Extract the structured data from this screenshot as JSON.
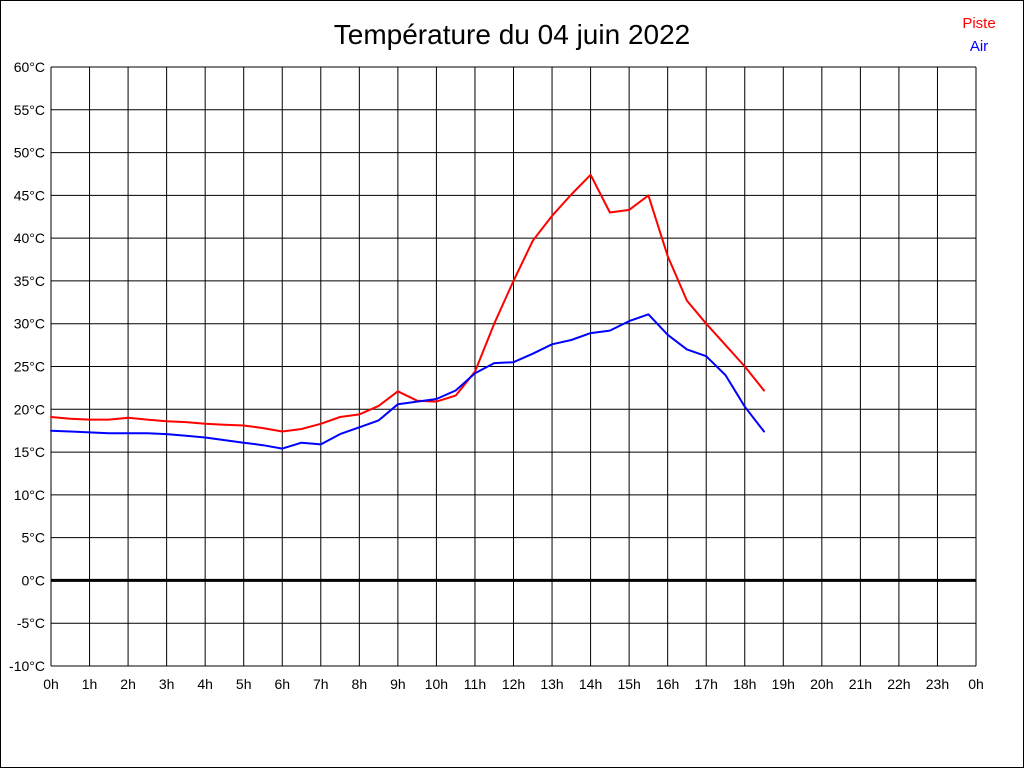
{
  "title": "Température du 04 juin 2022",
  "legend": {
    "items": [
      {
        "label": "Piste",
        "color": "#ff0000"
      },
      {
        "label": "Air",
        "color": "#0000ff"
      }
    ]
  },
  "chart_data": {
    "type": "line",
    "title": "Température du 04 juin 2022",
    "xlabel": "",
    "ylabel": "",
    "xlim": [
      0,
      24
    ],
    "ylim": [
      -10,
      60
    ],
    "grid": true,
    "grid_color": "#000000",
    "background": "#ffffff",
    "legend_position": "top-right",
    "zero_line_value": 0,
    "zero_line_width": 3,
    "x_tick_values": [
      0,
      1,
      2,
      3,
      4,
      5,
      6,
      7,
      8,
      9,
      10,
      11,
      12,
      13,
      14,
      15,
      16,
      17,
      18,
      19,
      20,
      21,
      22,
      23,
      24
    ],
    "x_tick_labels": [
      "0h",
      "1h",
      "2h",
      "3h",
      "4h",
      "5h",
      "6h",
      "7h",
      "8h",
      "9h",
      "10h",
      "11h",
      "12h",
      "13h",
      "14h",
      "15h",
      "16h",
      "17h",
      "18h",
      "19h",
      "20h",
      "21h",
      "22h",
      "23h",
      "0h"
    ],
    "y_tick_values": [
      60,
      55,
      50,
      45,
      40,
      35,
      30,
      25,
      20,
      15,
      10,
      5,
      0,
      -5,
      -10
    ],
    "y_tick_labels": [
      "60°C",
      "55°C",
      "50°C",
      "45°C",
      "40°C",
      "35°C",
      "30°C",
      "25°C",
      "20°C",
      "15°C",
      "10°C",
      "5°C",
      "0°C",
      "-5°C",
      "-10°C"
    ],
    "x": [
      0,
      0.5,
      1,
      1.5,
      2,
      2.5,
      3,
      3.5,
      4,
      4.5,
      5,
      5.5,
      6,
      6.5,
      7,
      7.5,
      8,
      8.5,
      9,
      9.5,
      10,
      10.5,
      11,
      11.5,
      12,
      12.5,
      13,
      13.5,
      14,
      14.5,
      15,
      15.5,
      16,
      16.5,
      17,
      17.5,
      18,
      18.5
    ],
    "series": [
      {
        "name": "Piste",
        "color": "#ff0000",
        "line_width": 2,
        "values": [
          19.1,
          18.9,
          18.8,
          18.8,
          19.0,
          18.8,
          18.6,
          18.5,
          18.3,
          18.2,
          18.1,
          17.8,
          17.4,
          17.7,
          18.3,
          19.1,
          19.4,
          20.4,
          22.1,
          21.0,
          20.9,
          21.6,
          24.4,
          30.0,
          35.0,
          39.7,
          42.6,
          45.1,
          47.4,
          43.0,
          43.3,
          45.0,
          37.9,
          32.7,
          30.0,
          27.5,
          25.0,
          22.2
        ]
      },
      {
        "name": "Air",
        "color": "#0000ff",
        "line_width": 2,
        "values": [
          17.5,
          17.4,
          17.3,
          17.2,
          17.2,
          17.2,
          17.1,
          16.9,
          16.7,
          16.4,
          16.1,
          15.8,
          15.4,
          16.1,
          15.9,
          17.1,
          17.9,
          18.7,
          20.6,
          20.9,
          21.2,
          22.2,
          24.2,
          25.4,
          25.5,
          26.5,
          27.6,
          28.1,
          28.9,
          29.2,
          30.3,
          31.1,
          28.7,
          27.0,
          26.2,
          24.0,
          20.3,
          17.4
        ]
      }
    ]
  }
}
